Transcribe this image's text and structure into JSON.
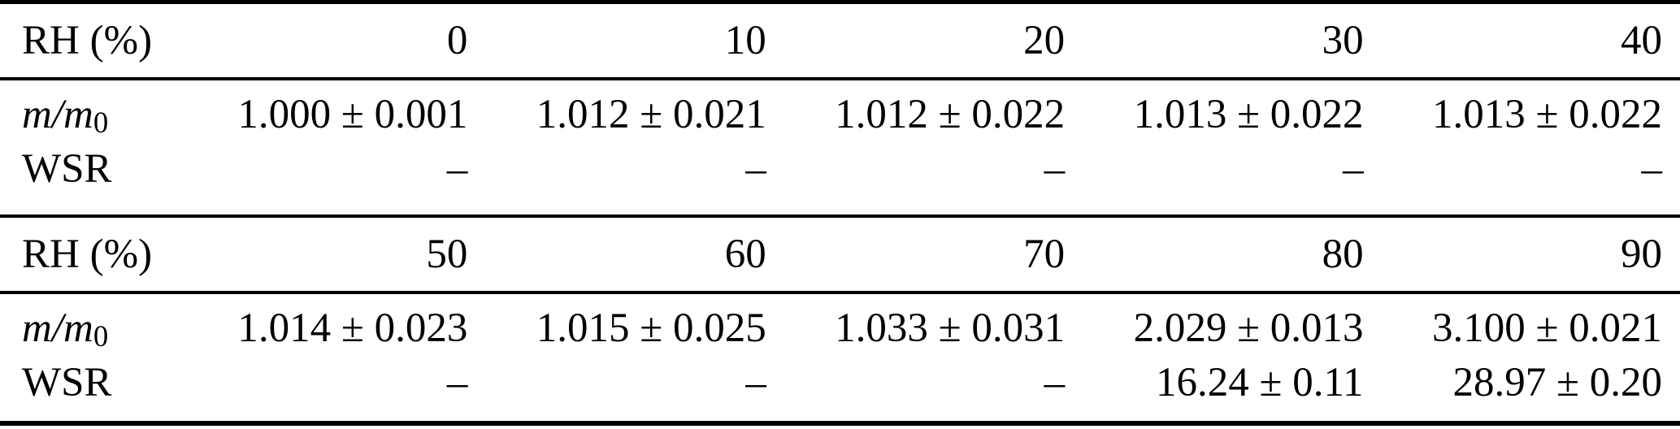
{
  "table": {
    "description": "Relative humidity table with mass ratio and water-to-soluble ratio measurements",
    "text_color": "#000000",
    "background_color": "#ffffff",
    "rule_color": "#000000",
    "sections": [
      {
        "header": {
          "label": "RH (%)",
          "values": [
            "0",
            "10",
            "20",
            "30",
            "40"
          ]
        },
        "rows": [
          {
            "label_base": "m/m",
            "label_sub": "0",
            "values": [
              "1.000 ± 0.001",
              "1.012 ± 0.021",
              "1.012 ± 0.022",
              "1.013 ± 0.022",
              "1.013 ± 0.022"
            ]
          },
          {
            "label": "WSR",
            "values": [
              "–",
              "–",
              "–",
              "–",
              "–"
            ]
          }
        ]
      },
      {
        "header": {
          "label": "RH (%)",
          "values": [
            "50",
            "60",
            "70",
            "80",
            "90"
          ]
        },
        "rows": [
          {
            "label_base": "m/m",
            "label_sub": "0",
            "values": [
              "1.014 ± 0.023",
              "1.015 ± 0.025",
              "1.033 ± 0.031",
              "2.029 ± 0.013",
              "3.100 ± 0.021"
            ]
          },
          {
            "label": "WSR",
            "values": [
              "–",
              "–",
              "–",
              "16.24 ± 0.11",
              "28.97 ± 0.20"
            ]
          }
        ]
      }
    ]
  }
}
